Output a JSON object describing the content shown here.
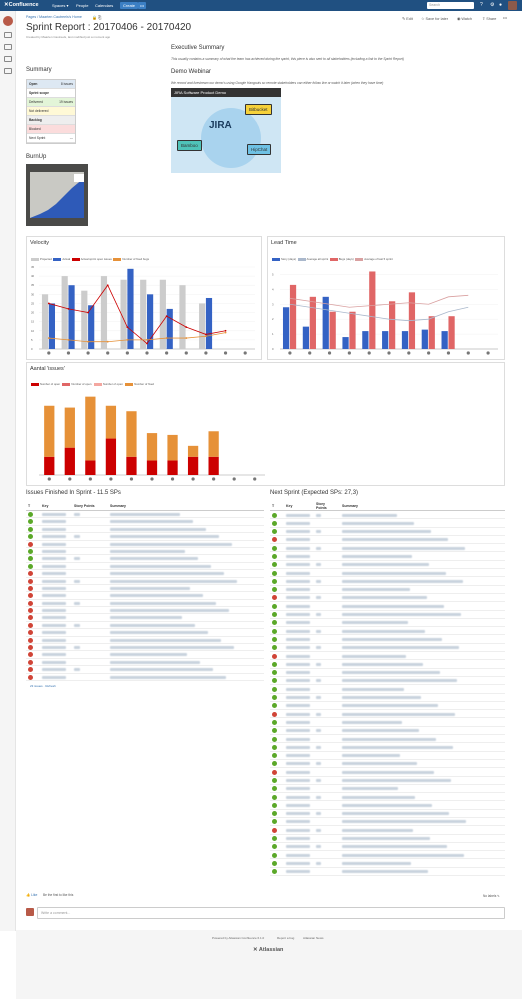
{
  "topbar": {
    "brand": "✕Confluence",
    "nav": [
      "Spaces ▾",
      "People",
      "Calendars"
    ],
    "create": "Create",
    "more": "•••",
    "search_placeholder": "Search"
  },
  "breadcrumb": "Pages / Maarten Cautreels's Home",
  "title": "Sprint Report : 20170406 - 20170420",
  "byline": "Created by Maarten Cautreels, last modified just a moment ago",
  "actions": {
    "edit": "✎ Edit",
    "save": "☆ Save for later",
    "watch": "◉ Watch",
    "share": "⇪ Share"
  },
  "summary": {
    "heading": "Summary",
    "rows": [
      {
        "label": "Open",
        "value": "8 issues",
        "bg": "#dde8f3",
        "bold": true
      },
      {
        "label": "Sprint scope",
        "value": "",
        "bg": "#ffffff",
        "bold": true
      },
      {
        "label": "Delivered",
        "value": "19 issues",
        "bg": "#e3f5d8",
        "bold": false
      },
      {
        "label": "Not delivered",
        "value": "",
        "bg": "#fff9d6",
        "bold": false
      },
      {
        "label": "Backlog",
        "value": "",
        "bg": "#eeeeee",
        "bold": true
      },
      {
        "label": "Blocked",
        "value": "",
        "bg": "#fbdcdc",
        "bold": false
      },
      {
        "label": "Next Sprint",
        "value": "---",
        "bg": "#ffffff",
        "bold": false
      }
    ]
  },
  "executive": {
    "heading": "Executive Summary",
    "text": "This usually contains a summary of what the team has achieved during the sprint, this piece is also sent to all stakeholders (including a link to the Sprint Report)"
  },
  "demo": {
    "heading": "Demo Webinar",
    "text": "We record and livestream our demo's using Google Hangouts so remote stakeholders can either follow live or watch it later (when they have time)",
    "video_title": "JIRA Software Product Demo",
    "logos": {
      "jira": "JIRA",
      "bitbucket": "Bitbucket",
      "bamboo": "Bamboo",
      "hipchat": "HipChat"
    }
  },
  "burnup_heading": "BurnUp",
  "velocity": {
    "title": "Velocity",
    "legend": [
      "Projected",
      "Actual",
      "Actual sprint open issues",
      "Number of fixed bugs"
    ]
  },
  "leadtime": {
    "title": "Lead Time",
    "legend": [
      "Story (days)",
      "Average all sprint",
      "Bugs (days)",
      "Average of last 5 sprint"
    ]
  },
  "issues_chart": {
    "title": "Aantal 'issues'",
    "legend": [
      "Number of open",
      "Number of open",
      "Number of open",
      "Number of fixed"
    ]
  },
  "chart_data": [
    {
      "type": "bar",
      "title": "Velocity",
      "ylim": [
        0,
        45
      ],
      "yticks": [
        "45",
        "40",
        "35",
        "30",
        "25",
        "20",
        "15",
        "10",
        "5",
        "0"
      ],
      "series": [
        {
          "name": "Projected",
          "values": [
            30,
            40,
            32,
            40,
            38,
            38,
            38,
            35,
            25,
            0,
            0
          ]
        },
        {
          "name": "Actual",
          "values": [
            25,
            35,
            24,
            0,
            44,
            30,
            22,
            0,
            28,
            0,
            0
          ]
        }
      ],
      "line_series": [
        {
          "name": "Actual sprint open issues",
          "values": [
            25,
            22,
            20,
            35,
            12,
            3,
            18,
            12,
            8,
            10,
            null
          ]
        },
        {
          "name": "Number of fixed bugs",
          "values": [
            6,
            5,
            4,
            4,
            5,
            5,
            6,
            6,
            7,
            9,
            null
          ]
        }
      ]
    },
    {
      "type": "bar",
      "title": "Lead Time",
      "ylim": [
        0,
        5.5
      ],
      "yticks": [
        "5",
        "4",
        "3",
        "2",
        "1",
        "0"
      ],
      "series": [
        {
          "name": "Story (days)",
          "values": [
            2.8,
            1.5,
            3.5,
            0.8,
            1.2,
            1.2,
            1.2,
            1.3,
            1.2,
            0,
            0
          ]
        },
        {
          "name": "Bugs (days)",
          "values": [
            4.3,
            3.5,
            2.5,
            2.5,
            5.2,
            3.2,
            3.8,
            2.2,
            2.2,
            0,
            0
          ]
        }
      ],
      "line_series": [
        {
          "name": "Average all sprint",
          "values": [
            3.0,
            2.8,
            2.6,
            2.4,
            2.2,
            2.0,
            1.9,
            2.0,
            2.5,
            2.8,
            null
          ]
        },
        {
          "name": "Average of last 5 sprint",
          "values": [
            3.4,
            3.2,
            3.0,
            2.8,
            2.9,
            3.0,
            3.1,
            3.0,
            3.5,
            3.6,
            null
          ]
        }
      ]
    },
    {
      "type": "bar",
      "title": "Aantal 'issues'",
      "ylim": [
        0,
        45
      ],
      "series": [
        {
          "name": "Number of open",
          "values": [
            10,
            15,
            8,
            20,
            10,
            8,
            8,
            10,
            10,
            0,
            0
          ]
        },
        {
          "name": "Number of fixed",
          "values": [
            28,
            22,
            35,
            18,
            25,
            15,
            14,
            6,
            14,
            0,
            0
          ]
        }
      ]
    }
  ],
  "issues_finished": {
    "heading": "Issues Finished In Sprint - 11.5 SPs",
    "columns": [
      "T",
      "Key",
      "Story Points",
      "Summary"
    ],
    "row_types": [
      "story",
      "story",
      "story",
      "story",
      "bug",
      "story",
      "story",
      "story",
      "bug",
      "bug",
      "bug",
      "bug",
      "bug",
      "bug",
      "bug",
      "bug",
      "bug",
      "bug",
      "bug",
      "bug",
      "bug",
      "bug",
      "bug"
    ],
    "footer": "23 issues · Refresh"
  },
  "next_sprint": {
    "heading": "Next Sprint (Expected SPs: 27,3)",
    "columns": [
      "T",
      "Key",
      "Story Points",
      "Summary"
    ],
    "row_count": 44
  },
  "comments": {
    "like": "👍 Like",
    "like_text": "Be the first to like this",
    "labels": "No labels ✎",
    "write_placeholder": "Write a comment..."
  },
  "footer": {
    "links": [
      "Powered by Atlassian Confluence 6.1.0",
      "Report a bug",
      "Atlassian News"
    ],
    "brand": "✕ Atlassian"
  },
  "colors": {
    "story": "#5ba829",
    "bug": "#d04437",
    "blue": "#3462c4",
    "red": "#cc0000",
    "orange": "#e69138",
    "gray": "#cccccc"
  }
}
